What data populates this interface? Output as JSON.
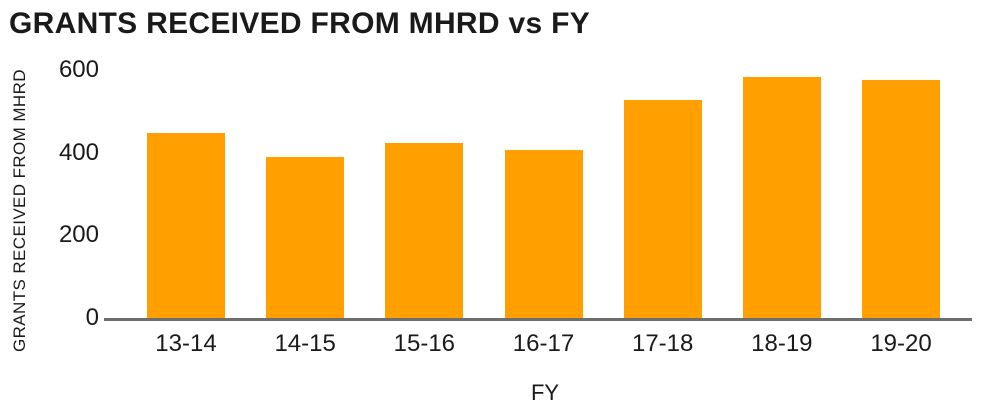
{
  "chart_data": {
    "type": "bar",
    "title": "GRANTS RECEIVED FROM MHRD vs FY",
    "xlabel": "FY",
    "ylabel": "GRANTS RECEIVED FROM MHRD",
    "categories": [
      "13-14",
      "14-15",
      "15-16",
      "16-17",
      "17-18",
      "18-19",
      "19-20"
    ],
    "values": [
      448,
      390,
      423,
      406,
      527,
      584,
      577
    ],
    "yticks": [
      0,
      200,
      400,
      600
    ],
    "ylim": [
      0,
      600
    ],
    "grid": false,
    "legend": false,
    "bar_color": "#FFA000",
    "axis_line_color": "#6E6E6E",
    "text_color": "#1A1A1A"
  }
}
